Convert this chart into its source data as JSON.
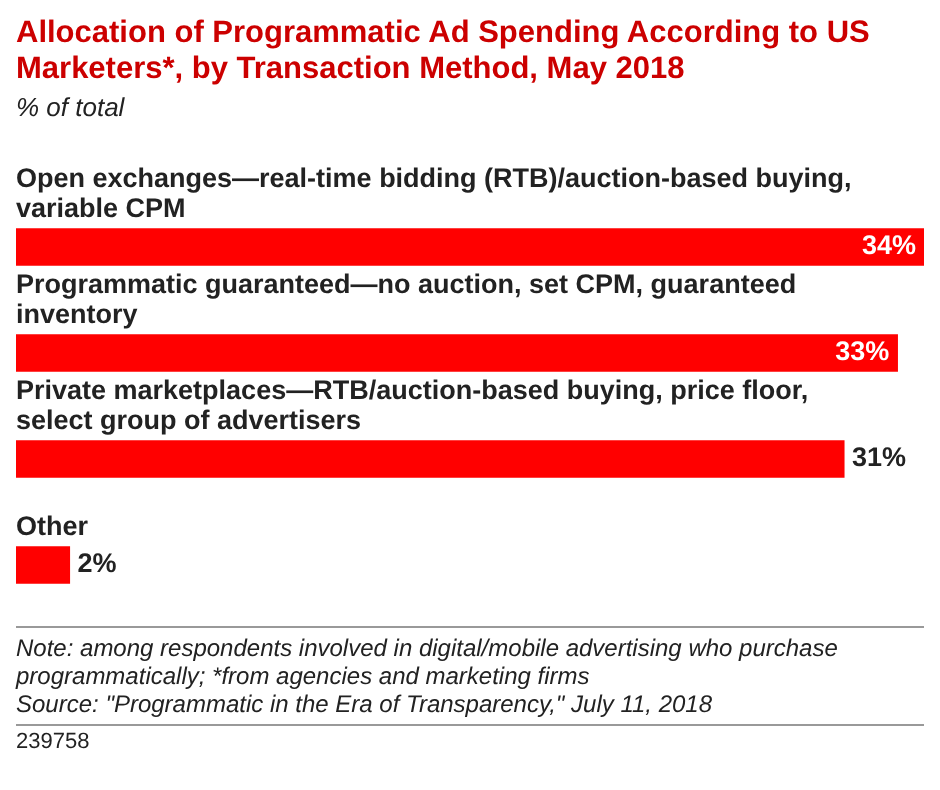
{
  "chart_data": {
    "type": "bar",
    "orientation": "horizontal",
    "title": "Allocation of Programmatic Ad Spending According to US Marketers*, by Transaction Method, May 2018",
    "subtitle": "% of total",
    "categories": [
      "Open exchanges—real-time bidding (RTB)/auction-based buying, variable CPM",
      "Programmatic guaranteed—no auction, set CPM, guaranteed inventory",
      "Private marketplaces—RTB/auction-based buying, price floor, select group of advertisers",
      "Other"
    ],
    "values": [
      34,
      33,
      31,
      2
    ],
    "value_labels": [
      "34%",
      "33%",
      "31%",
      "2%"
    ],
    "color": "#ff0000",
    "annotations": [
      "Note: among respondents involved in digital/mobile advertising who purchase programmatically; *from agencies and marketing firms",
      "Source: \"Programmatic in the Era of Transparency,\" July 11, 2018",
      "239758"
    ]
  }
}
